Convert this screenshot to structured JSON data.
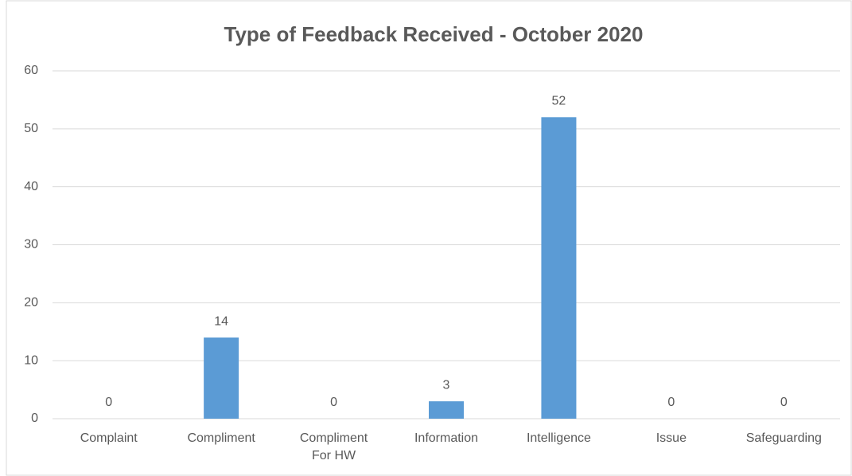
{
  "chart_data": {
    "type": "bar",
    "title": "Type of Feedback Received - October 2020",
    "categories": [
      "Complaint",
      "Compliment",
      "Compliment For HW",
      "Information",
      "Intelligence",
      "Issue",
      "Safeguarding"
    ],
    "values": [
      0,
      14,
      0,
      3,
      52,
      0,
      0
    ],
    "color": "#5b9bd5",
    "ylim": [
      0,
      60
    ],
    "yticks": [
      0,
      10,
      20,
      30,
      40,
      50,
      60
    ],
    "grid": true
  }
}
